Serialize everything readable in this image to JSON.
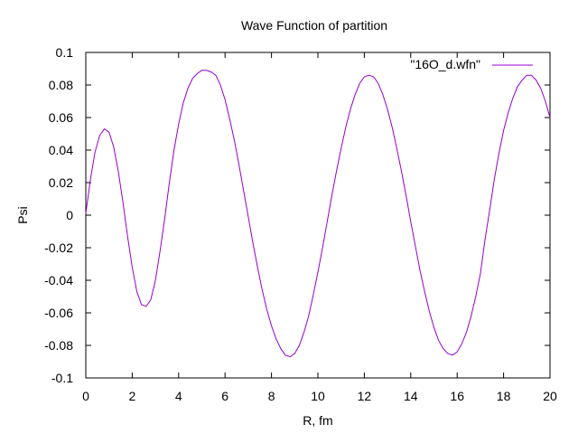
{
  "chart_data": {
    "type": "line",
    "title": "Wave Function of partition",
    "xlabel": "R, fm",
    "ylabel": "Psi",
    "xlim": [
      0,
      20
    ],
    "ylim": [
      -0.1,
      0.1
    ],
    "x_ticks": [
      0,
      2,
      4,
      6,
      8,
      10,
      12,
      14,
      16,
      18,
      20
    ],
    "x_tick_labels": [
      "0",
      "2",
      "4",
      "6",
      "8",
      "10",
      "12",
      "14",
      "16",
      "18",
      "20"
    ],
    "y_ticks": [
      -0.1,
      -0.08,
      -0.06,
      -0.04,
      -0.02,
      0,
      0.02,
      0.04,
      0.06,
      0.08,
      0.1
    ],
    "y_tick_labels": [
      "-0.1",
      "-0.08",
      "-0.06",
      "-0.04",
      "-0.02",
      "0",
      "0.02",
      "0.04",
      "0.06",
      "0.08",
      "0.1"
    ],
    "grid": false,
    "legend_position": "top-right",
    "series": [
      {
        "name": "\"16O_d.wfn\"",
        "color": "#9400d3",
        "x": [
          0,
          0.2,
          0.4,
          0.6,
          0.8,
          1.0,
          1.2,
          1.4,
          1.6,
          1.8,
          2.0,
          2.2,
          2.4,
          2.6,
          2.8,
          3.0,
          3.2,
          3.4,
          3.6,
          3.8,
          4.0,
          4.2,
          4.4,
          4.6,
          4.8,
          5.0,
          5.2,
          5.4,
          5.6,
          5.8,
          6.0,
          6.2,
          6.4,
          6.6,
          6.8,
          7.0,
          7.2,
          7.4,
          7.6,
          7.8,
          8.0,
          8.2,
          8.4,
          8.6,
          8.8,
          9.0,
          9.2,
          9.4,
          9.6,
          9.8,
          10.0,
          10.2,
          10.4,
          10.6,
          10.8,
          11.0,
          11.2,
          11.4,
          11.6,
          11.8,
          12.0,
          12.2,
          12.4,
          12.6,
          12.8,
          13.0,
          13.2,
          13.4,
          13.6,
          13.8,
          14.0,
          14.2,
          14.4,
          14.6,
          14.8,
          15.0,
          15.2,
          15.4,
          15.6,
          15.8,
          16.0,
          16.2,
          16.4,
          16.6,
          16.8,
          17.0,
          17.2,
          17.4,
          17.6,
          17.8,
          18.0,
          18.2,
          18.4,
          18.6,
          18.8,
          19.0,
          19.2,
          19.4,
          19.6,
          19.8,
          20.0
        ],
        "y": [
          0.001,
          0.022,
          0.039,
          0.049,
          0.053,
          0.051,
          0.042,
          0.027,
          0.008,
          -0.013,
          -0.032,
          -0.047,
          -0.055,
          -0.056,
          -0.052,
          -0.04,
          -0.022,
          -0.002,
          0.02,
          0.04,
          0.056,
          0.069,
          0.078,
          0.084,
          0.087,
          0.089,
          0.089,
          0.088,
          0.086,
          0.08,
          0.071,
          0.059,
          0.046,
          0.031,
          0.015,
          -0.001,
          -0.017,
          -0.032,
          -0.046,
          -0.058,
          -0.068,
          -0.076,
          -0.082,
          -0.086,
          -0.087,
          -0.085,
          -0.08,
          -0.072,
          -0.062,
          -0.049,
          -0.035,
          -0.02,
          -0.004,
          0.012,
          0.027,
          0.041,
          0.054,
          0.065,
          0.074,
          0.081,
          0.085,
          0.086,
          0.085,
          0.081,
          0.074,
          0.065,
          0.054,
          0.041,
          0.027,
          0.012,
          -0.004,
          -0.019,
          -0.034,
          -0.047,
          -0.059,
          -0.069,
          -0.077,
          -0.082,
          -0.085,
          -0.086,
          -0.084,
          -0.079,
          -0.072,
          -0.062,
          -0.05,
          -0.036,
          -0.015,
          0.003,
          0.022,
          0.038,
          0.052,
          0.063,
          0.072,
          0.079,
          0.083,
          0.086,
          0.086,
          0.083,
          0.078,
          0.07,
          0.06
        ]
      }
    ]
  }
}
